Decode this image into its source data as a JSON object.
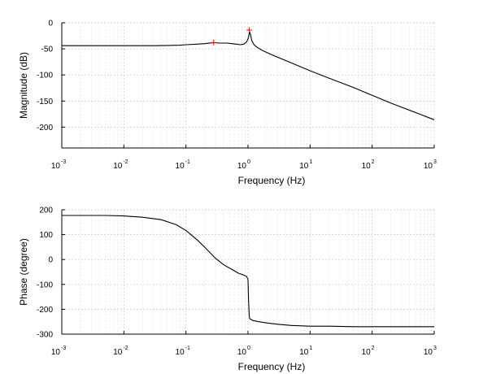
{
  "chart_data": [
    {
      "type": "line",
      "xscale": "log",
      "xlabel": "Frequency (Hz)",
      "ylabel": "Magnitude (dB)",
      "xlim": [
        0.001,
        1000
      ],
      "ylim": [
        -240,
        0
      ],
      "xticks": [
        0.001,
        0.01,
        0.1,
        1,
        10,
        100,
        1000
      ],
      "xtick_labels": [
        {
          "base": "10",
          "exp": "-3"
        },
        {
          "base": "10",
          "exp": "-2"
        },
        {
          "base": "10",
          "exp": "-1"
        },
        {
          "base": "10",
          "exp": "0"
        },
        {
          "base": "10",
          "exp": "1"
        },
        {
          "base": "10",
          "exp": "2"
        },
        {
          "base": "10",
          "exp": "3"
        }
      ],
      "yticks": [
        0,
        -50,
        -100,
        -150,
        -200
      ],
      "ytick_labels": [
        "0",
        "-50",
        "-100",
        "-150",
        "-200"
      ],
      "grid": true,
      "line_color": "#000000",
      "series": [
        {
          "x": [
            0.001,
            0.01,
            0.03,
            0.05,
            0.08,
            0.1,
            0.15,
            0.2,
            0.28,
            0.35,
            0.45,
            0.55,
            0.65,
            0.75,
            0.85,
            0.95,
            1.02,
            1.06,
            1.1,
            1.15,
            1.25,
            1.4,
            1.7,
            2.2,
            3,
            5,
            10,
            20,
            50,
            100,
            200,
            500,
            1000
          ],
          "y": [
            -44,
            -44,
            -44,
            -43.5,
            -43,
            -42,
            -41,
            -40,
            -38,
            -39,
            -39,
            -40,
            -41,
            -42,
            -41,
            -37,
            -28,
            -17,
            -23,
            -34,
            -42,
            -47,
            -53,
            -59,
            -66,
            -77,
            -92,
            -106,
            -124,
            -139,
            -154,
            -172,
            -186
          ]
        }
      ],
      "markers": [
        {
          "x": 0.28,
          "y": -38,
          "symbol": "+",
          "color": "#ff0000"
        },
        {
          "x": 1.05,
          "y": -14,
          "symbol": "+",
          "color": "#ff0000"
        }
      ]
    },
    {
      "type": "line",
      "xscale": "log",
      "xlabel": "Frequency (Hz)",
      "ylabel": "Phase (degree)",
      "xlim": [
        0.001,
        1000
      ],
      "ylim": [
        -300,
        200
      ],
      "xticks": [
        0.001,
        0.01,
        0.1,
        1,
        10,
        100,
        1000
      ],
      "xtick_labels": [
        {
          "base": "10",
          "exp": "-3"
        },
        {
          "base": "10",
          "exp": "-2"
        },
        {
          "base": "10",
          "exp": "-1"
        },
        {
          "base": "10",
          "exp": "0"
        },
        {
          "base": "10",
          "exp": "1"
        },
        {
          "base": "10",
          "exp": "2"
        },
        {
          "base": "10",
          "exp": "3"
        }
      ],
      "yticks": [
        200,
        100,
        0,
        -100,
        -200,
        -300
      ],
      "ytick_labels": [
        "200",
        "100",
        "0",
        "-100",
        "-200",
        "-300"
      ],
      "grid": true,
      "line_color": "#000000",
      "series": [
        {
          "x": [
            0.001,
            0.005,
            0.01,
            0.02,
            0.04,
            0.07,
            0.1,
            0.15,
            0.2,
            0.3,
            0.4,
            0.55,
            0.7,
            0.85,
            0.95,
            1.0,
            1.02,
            1.05,
            1.07,
            1.1,
            1.2,
            1.5,
            2,
            3,
            5,
            10,
            20,
            50,
            100,
            1000
          ],
          "y": [
            177,
            177,
            175,
            170,
            160,
            140,
            117,
            80,
            50,
            5,
            -20,
            -40,
            -55,
            -62,
            -68,
            -80,
            -165,
            -230,
            -238,
            -240,
            -245,
            -250,
            -255,
            -260,
            -265,
            -268,
            -268,
            -270,
            -270,
            -270
          ]
        }
      ]
    }
  ]
}
